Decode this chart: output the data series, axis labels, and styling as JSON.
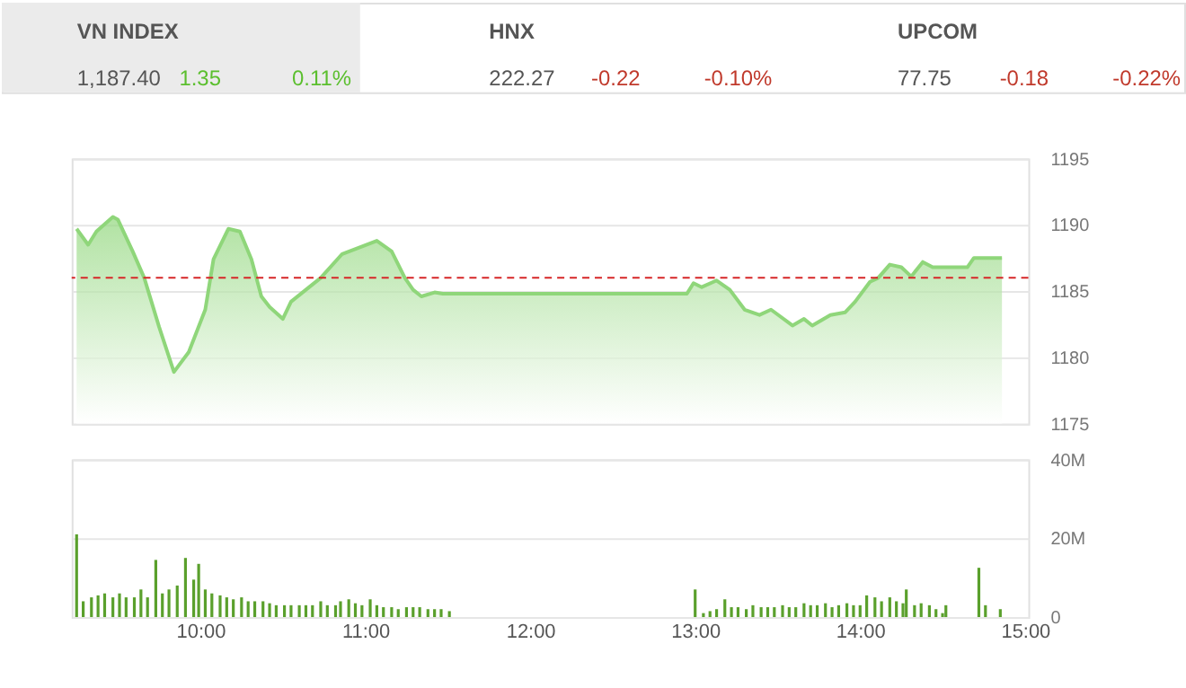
{
  "chart_data": [
    {
      "type": "other",
      "annotations": [
        "VN INDEX",
        "1,187.40",
        "1.35",
        "0.11%",
        "HNX",
        "222.27",
        "-0.22",
        "-0.10%",
        "UPCOM",
        "77.75",
        "-0.18",
        "-0.22%"
      ]
    },
    {
      "type": "area",
      "x": [
        9.25,
        9.32,
        9.37,
        9.47,
        9.5,
        9.59,
        9.66,
        9.75,
        9.84,
        9.93,
        10.03,
        10.08,
        10.17,
        10.24,
        10.31,
        10.37,
        10.42,
        10.5,
        10.55,
        10.64,
        10.73,
        10.86,
        11.07,
        11.16,
        11.24,
        11.29,
        11.34,
        11.42,
        11.47,
        12.95,
        12.99,
        13.04,
        13.13,
        13.21,
        13.3,
        13.39,
        13.46,
        13.59,
        13.66,
        13.71,
        13.82,
        13.91,
        13.97,
        14.06,
        14.11,
        14.18,
        14.25,
        14.31,
        14.38,
        14.44,
        14.65,
        14.69,
        14.86
      ],
      "series": [
        {
          "color": "#8fd67a",
          "values": [
            1189.7,
            1188.5,
            1189.5,
            1190.6,
            1190.4,
            1188.0,
            1186.0,
            1182.3,
            1178.9,
            1180.4,
            1183.6,
            1187.4,
            1189.7,
            1189.5,
            1187.4,
            1184.6,
            1183.8,
            1182.9,
            1184.2,
            1185.1,
            1186.0,
            1187.8,
            1188.8,
            1188.0,
            1186.0,
            1185.1,
            1184.6,
            1184.9,
            1184.8,
            1184.8,
            1185.6,
            1185.3,
            1185.8,
            1185.1,
            1183.6,
            1183.2,
            1183.6,
            1182.4,
            1182.9,
            1182.4,
            1183.2,
            1183.4,
            1184.2,
            1185.7,
            1186.0,
            1187.0,
            1186.8,
            1186.1,
            1187.2,
            1186.8,
            1186.8,
            1187.5,
            1187.5
          ]
        }
      ],
      "xlim": [
        9.22,
        15.02
      ],
      "ylim": [
        1175,
        1195
      ],
      "yticks": [
        1175,
        1180,
        1185,
        1190,
        1195
      ],
      "grid": "y",
      "tick_labels": "y",
      "ref_lines": [
        {
          "axis": "y",
          "value": 1186,
          "color": "#d62728",
          "line_style": "dashed"
        }
      ]
    },
    {
      "type": "bar",
      "x": [
        9.25,
        9.29,
        9.34,
        9.38,
        9.42,
        9.47,
        9.51,
        9.55,
        9.6,
        9.64,
        9.68,
        9.73,
        9.77,
        9.81,
        9.86,
        9.91,
        9.96,
        9.99,
        10.03,
        10.07,
        10.12,
        10.16,
        10.2,
        10.25,
        10.29,
        10.33,
        10.38,
        10.42,
        10.46,
        10.51,
        10.55,
        10.6,
        10.64,
        10.68,
        10.73,
        10.77,
        10.82,
        10.85,
        10.9,
        10.94,
        10.98,
        11.03,
        11.07,
        11.11,
        11.16,
        11.2,
        11.25,
        11.29,
        11.33,
        11.38,
        11.42,
        11.46,
        11.51,
        13.0,
        13.05,
        13.09,
        13.13,
        13.18,
        13.22,
        13.26,
        13.31,
        13.35,
        13.4,
        13.44,
        13.48,
        13.53,
        13.57,
        13.61,
        13.66,
        13.7,
        13.74,
        13.79,
        13.83,
        13.87,
        13.92,
        13.96,
        14.0,
        14.04,
        14.09,
        14.13,
        14.18,
        14.22,
        14.26,
        14.28,
        14.33,
        14.37,
        14.42,
        14.46,
        14.5,
        14.52,
        14.72,
        14.76,
        14.85
      ],
      "series": [
        {
          "color": "#5aa02c",
          "values": [
            21,
            4,
            5,
            5.5,
            6,
            5,
            6,
            5,
            5,
            7,
            5,
            14.5,
            6,
            7,
            8,
            15,
            9.5,
            13.5,
            7,
            6,
            5.5,
            5,
            4.5,
            5,
            4,
            4,
            4,
            3.5,
            3,
            3,
            3,
            3,
            3,
            3,
            4,
            3,
            3,
            4,
            4.5,
            3.5,
            3,
            4.5,
            3,
            2.5,
            2.5,
            2,
            2.5,
            2.5,
            2.5,
            2,
            2,
            2,
            1.5,
            7,
            1,
            1.5,
            2,
            4.5,
            2.5,
            2.5,
            2,
            3,
            2.5,
            2.5,
            2.5,
            3,
            2.5,
            2.5,
            3.5,
            3,
            3,
            3.5,
            2.5,
            3,
            3.5,
            3,
            3,
            5.5,
            5,
            4,
            5,
            4,
            3.5,
            7,
            3,
            3.5,
            3,
            2,
            1,
            3,
            12.5,
            3,
            2
          ]
        }
      ],
      "xlim": [
        9.22,
        15.02
      ],
      "xticks": [
        {
          "value": 10,
          "label": "10:00"
        },
        {
          "value": 11,
          "label": "11:00"
        },
        {
          "value": 12,
          "label": "12:00"
        },
        {
          "value": 13,
          "label": "13:00"
        },
        {
          "value": 14,
          "label": "14:00"
        },
        {
          "value": 15,
          "label": "15:00"
        }
      ],
      "ylim": [
        0,
        40
      ],
      "yticks": [
        0,
        {
          "value": 20,
          "label": "20M"
        },
        {
          "value": 40,
          "label": "40M"
        }
      ],
      "grid": "y"
    }
  ]
}
